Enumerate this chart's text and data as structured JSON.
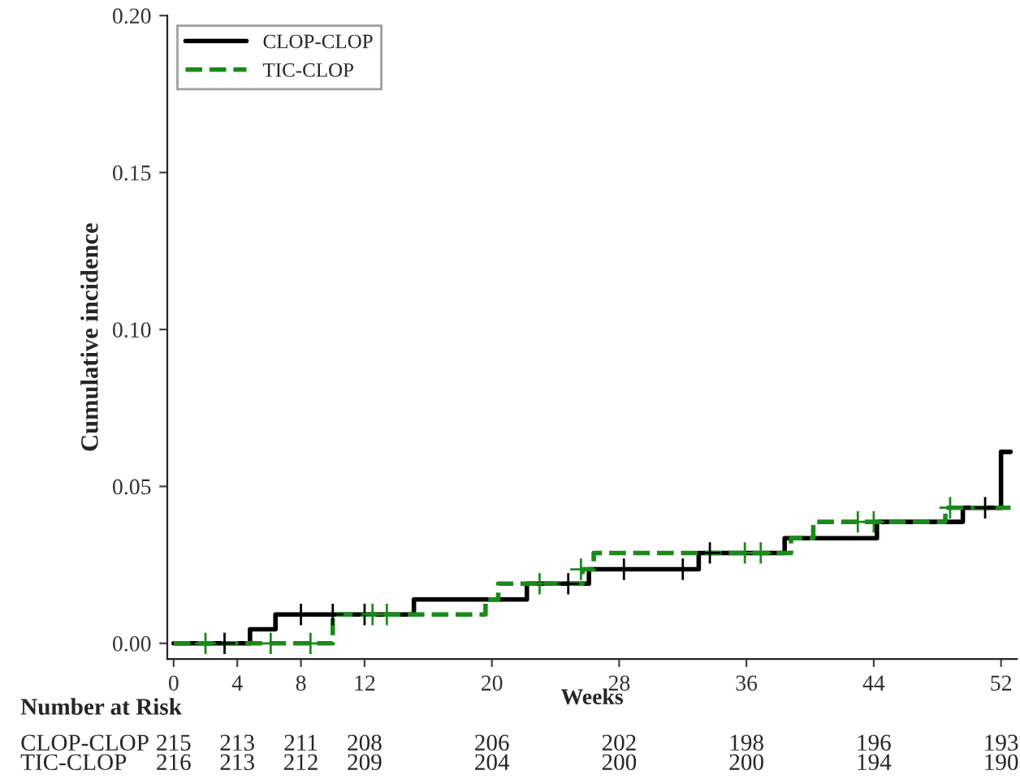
{
  "chart_data": {
    "type": "step",
    "xlabel": "Weeks",
    "ylabel": "Cumulative incidence",
    "xlim": [
      -0.4,
      53
    ],
    "ylim": [
      -0.005,
      0.2
    ],
    "xticks": [
      0,
      4,
      8,
      12,
      20,
      28,
      36,
      44,
      52
    ],
    "yticks": [
      {
        "value": 0,
        "label": "0.00"
      },
      {
        "value": 0.05,
        "label": "0.05"
      },
      {
        "value": 0.1,
        "label": "0.10"
      },
      {
        "value": 0.15,
        "label": "0.15"
      },
      {
        "value": 0.2,
        "label": "0.20"
      }
    ],
    "grid": false,
    "legend": "top left",
    "marker": "none",
    "series": [
      {
        "name": "CLOP-CLOP",
        "color": "#000000",
        "line_style": "solid",
        "x": [
          0,
          4.8,
          6.4,
          15.1,
          22.2,
          26.1,
          33.0,
          38.4,
          44.2,
          49.6,
          52,
          52.6
        ],
        "values": [
          0,
          0.0045,
          0.0092,
          0.014,
          0.019,
          0.0236,
          0.0288,
          0.0335,
          0.0387,
          0.0432,
          0.061,
          0.061
        ]
      },
      {
        "name": "TIC-CLOP",
        "color": "#1a8a1a",
        "line_style": "dashed",
        "x": [
          0,
          10.0,
          19.6,
          20.4,
          25.7,
          26.4,
          38.8,
          40.2,
          48.5,
          52,
          52.6
        ],
        "values": [
          0,
          0.0092,
          0.014,
          0.019,
          0.0236,
          0.0288,
          0.0335,
          0.0387,
          0.0432,
          0.0432,
          0.0432
        ]
      },
      {
        "type": "scatter",
        "marker": "cross",
        "color": "#000000",
        "x": [
          3.2,
          8.0,
          10.0,
          12.0,
          24.8,
          28.3,
          32.0,
          33.7,
          51.0
        ],
        "values": [
          0,
          0.0092,
          0.0092,
          0.0092,
          0.019,
          0.0236,
          0.0236,
          0.0288,
          0.0432
        ]
      },
      {
        "type": "scatter",
        "marker": "cross",
        "color": "#1a8a1a",
        "x": [
          2.0,
          6.1,
          8.6,
          12.5,
          13.4,
          23.0,
          25.6,
          35.9,
          36.9,
          43.0,
          44.0,
          48.8
        ],
        "values": [
          0,
          0,
          0,
          0.0092,
          0.0092,
          0.019,
          0.0236,
          0.0288,
          0.0288,
          0.0387,
          0.0387,
          0.0432
        ]
      }
    ],
    "annotations": [
      "Number at Risk",
      "CLOP-CLOP",
      "215",
      "213",
      "211",
      "208",
      "206",
      "202",
      "198",
      "196",
      "193",
      "TIC-CLOP",
      "216",
      "213",
      "212",
      "209",
      "204",
      "200",
      "200",
      "194",
      "190"
    ]
  }
}
